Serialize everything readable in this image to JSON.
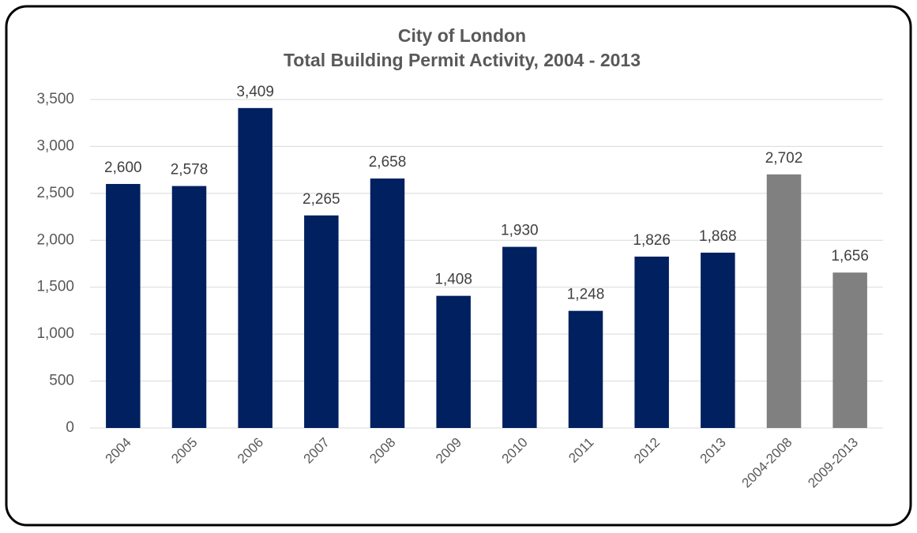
{
  "chart_data": {
    "type": "bar",
    "title": "City of London",
    "subtitle": "Total Building Permit Activity, 2004 - 2013",
    "categories": [
      "2004",
      "2005",
      "2006",
      "2007",
      "2008",
      "2009",
      "2010",
      "2011",
      "2012",
      "2013",
      "2004-2008",
      "2009-2013"
    ],
    "values": [
      2600,
      2578,
      3409,
      2265,
      2658,
      1408,
      1930,
      1248,
      1826,
      1868,
      2702,
      1656
    ],
    "value_labels": [
      "2,600",
      "2,578",
      "3,409",
      "2,265",
      "2,658",
      "1,408",
      "1,930",
      "1,248",
      "1,826",
      "1,868",
      "2,702",
      "1,656"
    ],
    "colors": [
      "#002060",
      "#002060",
      "#002060",
      "#002060",
      "#002060",
      "#002060",
      "#002060",
      "#002060",
      "#002060",
      "#002060",
      "#808080",
      "#808080"
    ],
    "ylim": [
      0,
      3500
    ],
    "yticks": [
      0,
      500,
      {
        "value": 1000,
        "label": "1,000"
      },
      {
        "value": 1500,
        "label": "1,500"
      },
      {
        "value": 2000,
        "label": "2,000"
      },
      {
        "value": 2500,
        "label": "2,500"
      },
      {
        "value": 3000,
        "label": "3,000"
      },
      {
        "value": 3500,
        "label": "3,500"
      }
    ],
    "grid": true
  }
}
